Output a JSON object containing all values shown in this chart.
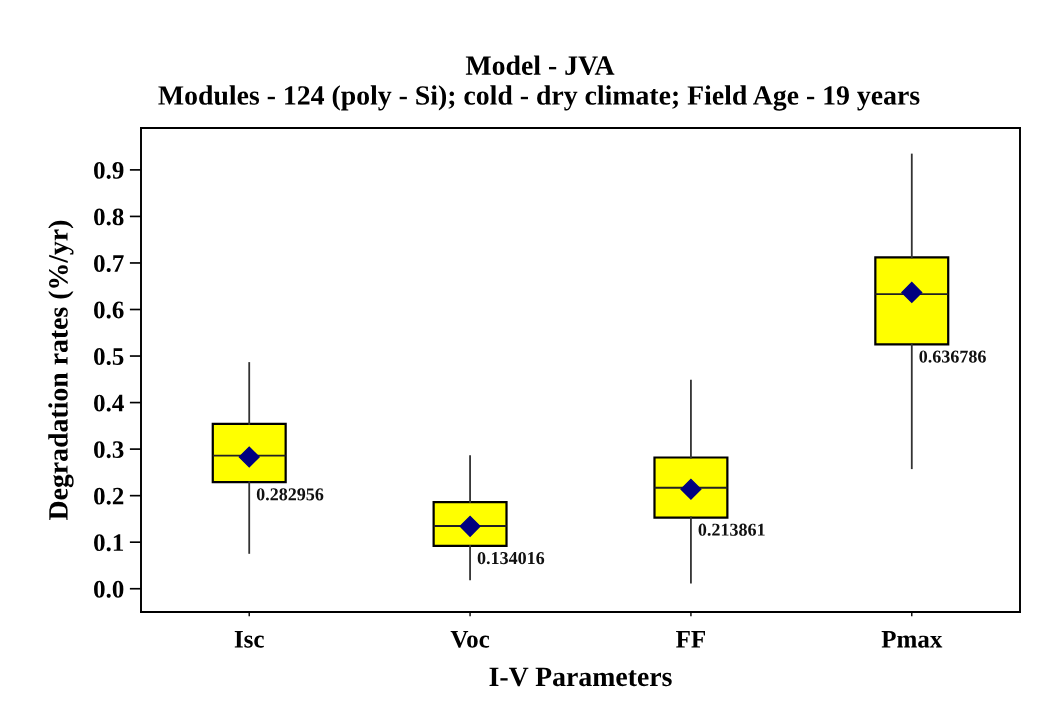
{
  "chart_data": {
    "type": "box",
    "title": "Model - JVA",
    "subtitle": "Modules - 124 (poly - Si); cold - dry climate; Field Age - 19 years",
    "xlabel": "I-V Parameters",
    "ylabel": "Degradation rates (%/yr)",
    "categories": [
      "Isc",
      "Voc",
      "FF",
      "Pmax"
    ],
    "series": [
      {
        "color": "#ffff00",
        "boxes": [
          {
            "low": 0.077,
            "q1": 0.229,
            "median": 0.286,
            "q3": 0.354,
            "high": 0.485,
            "mean": 0.282956
          },
          {
            "low": 0.02,
            "q1": 0.092,
            "median": 0.135,
            "q3": 0.186,
            "high": 0.285,
            "mean": 0.134016
          },
          {
            "low": 0.013,
            "q1": 0.153,
            "median": 0.217,
            "q3": 0.282,
            "high": 0.447,
            "mean": 0.213861
          },
          {
            "low": 0.259,
            "q1": 0.525,
            "median": 0.633,
            "q3": 0.712,
            "high": 0.933,
            "mean": 0.636786
          }
        ],
        "value_labels": [
          "0.282956",
          "0.134016",
          "0.213861",
          "0.636786"
        ]
      }
    ],
    "ylim": [
      -0.05,
      0.99
    ],
    "yticks": [
      {
        "value": 0,
        "label": "0.0"
      },
      0.1,
      0.2,
      0.3,
      0.4,
      0.5,
      0.6,
      0.7,
      0.8,
      0.9
    ],
    "marker": "diamond"
  }
}
